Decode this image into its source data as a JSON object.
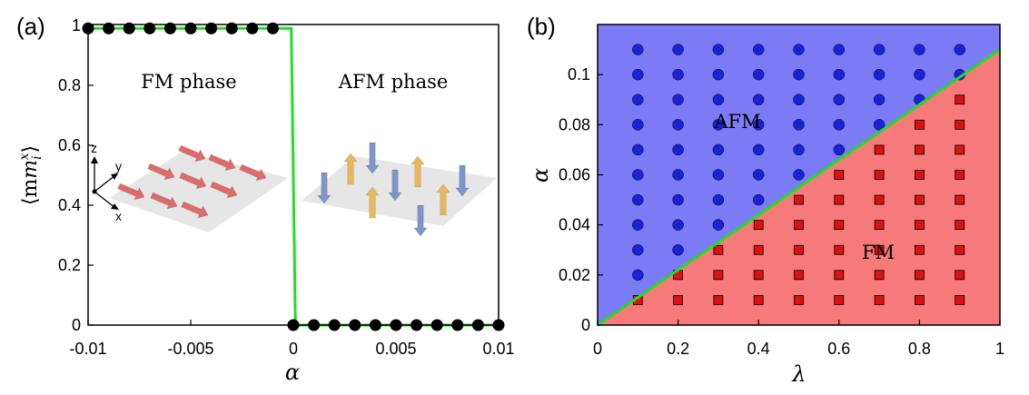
{
  "colors": {
    "transition_line": "#22dd22",
    "dots": "#000000",
    "afm_region": "#7b7bf6",
    "fm_region": "#f77a7a",
    "afm_markers": "#1a22d8",
    "fm_markers": "#dd1111",
    "fm_arrow": "#de6b6b",
    "afm_arrow_up": "#e8b85c",
    "afm_arrow_down": "#7c96c8"
  },
  "chart_data": [
    {
      "type": "line",
      "panel_label": "(a)",
      "xlabel": "α",
      "ylabel": "⟨m",
      "ylabel_sub": "i",
      "ylabel_sup": "x",
      "ylabel_close": "⟩",
      "xlim": [
        -0.01,
        0.01
      ],
      "ylim": [
        0,
        1
      ],
      "xticks": [
        -0.01,
        -0.005,
        0,
        0.005,
        0.01
      ],
      "xtick_labels": [
        "-0.01",
        "-0.005",
        "0",
        "0.005",
        "0.01"
      ],
      "yticks": [
        0,
        0.2,
        0.4,
        0.6,
        0.8,
        1
      ],
      "ytick_labels": [
        "0",
        "0.2",
        "0.4",
        "0.6",
        "0.8",
        "1"
      ],
      "annotations": [
        "FM phase",
        "AFM phase"
      ],
      "inset_axis_labels": [
        "z",
        "y",
        "x"
      ],
      "series": [
        {
          "style": "line",
          "x": [
            -0.01,
            -0.0001,
            0.0001,
            0.01
          ],
          "y": [
            0.99,
            0.99,
            0.0,
            0.0
          ]
        },
        {
          "style": "markers",
          "x": [
            -0.01,
            -0.009,
            -0.008,
            -0.007,
            -0.006,
            -0.005,
            -0.004,
            -0.003,
            -0.002,
            -0.001,
            0.0,
            0.001,
            0.002,
            0.003,
            0.004,
            0.005,
            0.006,
            0.007,
            0.008,
            0.009,
            0.01
          ],
          "y": [
            0.99,
            0.99,
            0.99,
            0.99,
            0.99,
            0.99,
            0.99,
            0.99,
            0.99,
            0.99,
            0.0,
            0.0,
            0.0,
            0.0,
            0.0,
            0.0,
            0.0,
            0.0,
            0.0,
            0.0,
            0.0
          ]
        }
      ]
    },
    {
      "type": "scatter",
      "panel_label": "(b)",
      "xlabel": "λ",
      "ylabel": "α",
      "xlim": [
        0,
        1
      ],
      "ylim": [
        0,
        0.12
      ],
      "xticks": [
        0,
        0.2,
        0.4,
        0.6,
        0.8,
        1
      ],
      "xtick_labels": [
        "0",
        "0.2",
        "0.4",
        "0.6",
        "0.8",
        "1"
      ],
      "yticks": [
        0,
        0.02,
        0.04,
        0.06,
        0.08,
        0.1
      ],
      "ytick_labels": [
        "0",
        "0.02",
        "0.04",
        "0.06",
        "0.08",
        "0.1"
      ],
      "region_labels": [
        "AFM",
        "FM"
      ],
      "boundary": {
        "x": [
          0,
          1
        ],
        "y": [
          0,
          0.11
        ]
      },
      "lambda_values": [
        0.1,
        0.2,
        0.3,
        0.4,
        0.5,
        0.6,
        0.7,
        0.8,
        0.9
      ],
      "alpha_values": [
        0.01,
        0.02,
        0.03,
        0.04,
        0.05,
        0.06,
        0.07,
        0.08,
        0.09,
        0.1,
        0.11
      ]
    }
  ]
}
